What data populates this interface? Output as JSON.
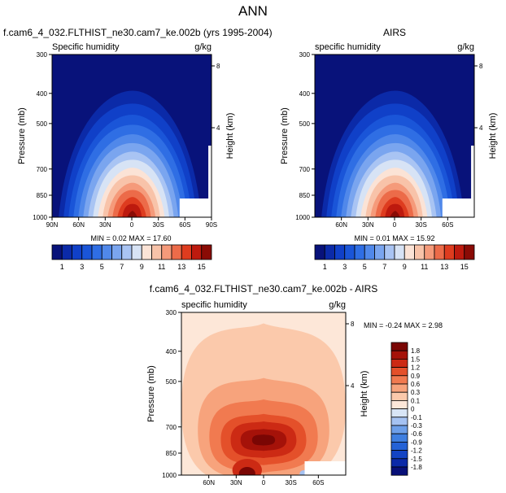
{
  "page": {
    "title": "ANN"
  },
  "panels": [
    {
      "case_title": "f.cam6_4_032.FLTHIST_ne30.cam7_ke.002b (yrs 1995-2004)",
      "left_label": "Specific humidity",
      "right_label": "g/kg",
      "ylabel": "Pressure (mb)",
      "y2label": "Height (km)",
      "stats": "MIN =  0.02  MAX =  17.60"
    },
    {
      "case_title": "AIRS",
      "left_label": "specific humidity",
      "right_label": "g/kg",
      "ylabel": "Pressure (mb)",
      "y2label": "Height (km)",
      "stats": "MIN =  0.01  MAX =  15.92"
    },
    {
      "case_title": "f.cam6_4_032.FLTHIST_ne30.cam7_ke.002b - AIRS",
      "left_label": "specific humidity",
      "right_label": "g/kg",
      "ylabel": "Pressure (mb)",
      "y2label": "Height (km)",
      "stats": "MIN = -0.24  MAX =  2.98"
    }
  ],
  "chart_data": [
    {
      "type": "heatmap",
      "title": "f.cam6_4_032.FLTHIST_ne30.cam7_ke.002b (yrs 1995-2004)",
      "subtitle": "Specific humidity",
      "units": "g/kg",
      "ylabel": "Pressure (mb)",
      "y2label": "Height (km)",
      "y_ticks": [
        "300",
        "400",
        "500",
        "700",
        "850",
        "1000"
      ],
      "y2_ticks": [
        "8",
        "4"
      ],
      "x_ticks": [
        "90N",
        "60N",
        "30N",
        "0",
        "30S",
        "60S",
        "90S"
      ],
      "ylim": [
        1000,
        300
      ],
      "xlim": [
        "90N",
        "90S"
      ],
      "min": 0.02,
      "max": 17.6,
      "colorbar_ticks": [
        "1",
        "3",
        "5",
        "7",
        "9",
        "11",
        "13",
        "15"
      ],
      "colorbar_levels": [
        1,
        2,
        3,
        4,
        5,
        6,
        7,
        8,
        9,
        10,
        11,
        12,
        13,
        14,
        15
      ]
    },
    {
      "type": "heatmap",
      "title": "AIRS",
      "subtitle": "specific humidity",
      "units": "g/kg",
      "ylabel": "Pressure (mb)",
      "y2label": "Height (km)",
      "y_ticks": [
        "300",
        "400",
        "500",
        "700",
        "850",
        "1000"
      ],
      "y2_ticks": [
        "8",
        "4"
      ],
      "x_ticks": [
        "60N",
        "30N",
        "0",
        "30S",
        "60S"
      ],
      "ylim": [
        1000,
        300
      ],
      "min": 0.01,
      "max": 15.92,
      "colorbar_ticks": [
        "1",
        "3",
        "5",
        "7",
        "9",
        "11",
        "13",
        "15"
      ],
      "colorbar_levels": [
        1,
        2,
        3,
        4,
        5,
        6,
        7,
        8,
        9,
        10,
        11,
        12,
        13,
        14,
        15
      ]
    },
    {
      "type": "heatmap",
      "title": "f.cam6_4_032.FLTHIST_ne30.cam7_ke.002b - AIRS",
      "subtitle": "specific humidity",
      "units": "g/kg",
      "ylabel": "Pressure (mb)",
      "y2label": "Height (km)",
      "y_ticks": [
        "300",
        "400",
        "500",
        "700",
        "850",
        "1000"
      ],
      "y2_ticks": [
        "8",
        "4"
      ],
      "x_ticks": [
        "60N",
        "30N",
        "0",
        "30S",
        "60S"
      ],
      "ylim": [
        1000,
        300
      ],
      "min": -0.24,
      "max": 2.98,
      "colorbar_ticks": [
        "1.8",
        "1.5",
        "1.2",
        "0.9",
        "0.6",
        "0.3",
        "0.1",
        "0",
        "-0.1",
        "-0.3",
        "-0.6",
        "-0.9",
        "-1.2",
        "-1.5",
        "-1.8"
      ],
      "colorbar_levels": [
        -1.8,
        -1.5,
        -1.2,
        -0.9,
        -0.6,
        -0.3,
        -0.1,
        0,
        0.1,
        0.3,
        0.6,
        0.9,
        1.2,
        1.5,
        1.8
      ]
    }
  ],
  "palettes": {
    "abs": [
      "#08127a",
      "#0b2aa8",
      "#1040c8",
      "#1a55d8",
      "#2f6ee4",
      "#5088ea",
      "#7aa5ef",
      "#a9c4f3",
      "#d7e3f5",
      "#fbe3d6",
      "#f8c3a9",
      "#f59a7a",
      "#ec6b49",
      "#de3c1f",
      "#bd1a0e",
      "#8a0b05"
    ],
    "diff": [
      "#081078",
      "#0b2aa8",
      "#1344c4",
      "#2462d6",
      "#3f7fe0",
      "#6d9fe9",
      "#a5c2f2",
      "#d8e5f6",
      "#fde7d8",
      "#fbc9ab",
      "#f7a37c",
      "#f17a50",
      "#e4502a",
      "#cc2a14",
      "#a51209",
      "#7a0604"
    ]
  }
}
